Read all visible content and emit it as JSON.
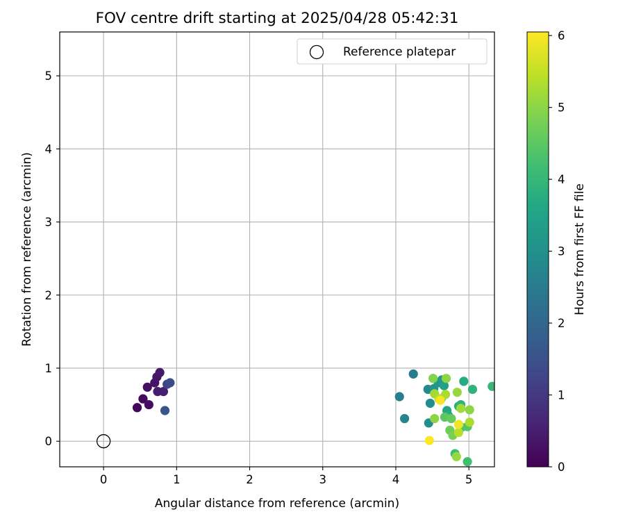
{
  "chart_data": {
    "type": "scatter",
    "title": "FOV centre drift starting at 2025/04/28 05:42:31",
    "xlabel": "Angular distance from reference (arcmin)",
    "ylabel": "Rotation from reference (arcmin)",
    "xlim": [
      -0.6,
      5.35
    ],
    "ylim": [
      -0.35,
      5.6
    ],
    "xticks": [
      0,
      1,
      2,
      3,
      4,
      5
    ],
    "yticks": [
      0,
      1,
      2,
      3,
      4,
      5
    ],
    "grid": true,
    "legend": {
      "position": "top-right",
      "entries": [
        "Reference platepar"
      ]
    },
    "reference_point": {
      "label": "Reference platepar",
      "x": 0,
      "y": 0,
      "marker": "open-circle"
    },
    "colorbar": {
      "label": "Hours from first FF file",
      "colormap": "viridis",
      "range": [
        0,
        6.05
      ],
      "ticks": [
        0,
        1,
        2,
        3,
        4,
        5,
        6
      ]
    },
    "points": [
      {
        "x": 0.46,
        "y": 0.46,
        "c": 0.1
      },
      {
        "x": 0.54,
        "y": 0.58,
        "c": 0.15
      },
      {
        "x": 0.62,
        "y": 0.5,
        "c": 0.2
      },
      {
        "x": 0.6,
        "y": 0.74,
        "c": 0.25
      },
      {
        "x": 0.7,
        "y": 0.8,
        "c": 0.3
      },
      {
        "x": 0.73,
        "y": 0.88,
        "c": 0.35
      },
      {
        "x": 0.77,
        "y": 0.94,
        "c": 0.4
      },
      {
        "x": 0.74,
        "y": 0.68,
        "c": 0.45
      },
      {
        "x": 0.82,
        "y": 0.68,
        "c": 0.5
      },
      {
        "x": 0.87,
        "y": 0.78,
        "c": 1.2
      },
      {
        "x": 0.91,
        "y": 0.8,
        "c": 1.4
      },
      {
        "x": 0.84,
        "y": 0.42,
        "c": 1.6
      },
      {
        "x": 4.24,
        "y": 0.92,
        "c": 2.5
      },
      {
        "x": 4.05,
        "y": 0.61,
        "c": 2.6
      },
      {
        "x": 4.12,
        "y": 0.31,
        "c": 2.7
      },
      {
        "x": 4.44,
        "y": 0.71,
        "c": 2.8
      },
      {
        "x": 4.47,
        "y": 0.52,
        "c": 2.9
      },
      {
        "x": 4.45,
        "y": 0.25,
        "c": 3.0
      },
      {
        "x": 4.52,
        "y": 0.72,
        "c": 3.1
      },
      {
        "x": 4.58,
        "y": 0.8,
        "c": 3.2
      },
      {
        "x": 4.63,
        "y": 0.84,
        "c": 3.3
      },
      {
        "x": 4.66,
        "y": 0.76,
        "c": 3.4
      },
      {
        "x": 4.62,
        "y": 0.58,
        "c": 3.5
      },
      {
        "x": 4.7,
        "y": 0.42,
        "c": 3.6
      },
      {
        "x": 4.72,
        "y": 0.35,
        "c": 3.7
      },
      {
        "x": 4.86,
        "y": 0.48,
        "c": 3.8
      },
      {
        "x": 4.89,
        "y": 0.5,
        "c": 3.9
      },
      {
        "x": 4.93,
        "y": 0.82,
        "c": 3.7
      },
      {
        "x": 5.05,
        "y": 0.71,
        "c": 3.9
      },
      {
        "x": 5.32,
        "y": 0.75,
        "c": 4.0
      },
      {
        "x": 4.81,
        "y": -0.17,
        "c": 4.1
      },
      {
        "x": 4.98,
        "y": -0.28,
        "c": 4.2
      },
      {
        "x": 4.9,
        "y": 0.19,
        "c": 4.3
      },
      {
        "x": 4.98,
        "y": 0.2,
        "c": 4.4
      },
      {
        "x": 4.67,
        "y": 0.33,
        "c": 4.5
      },
      {
        "x": 4.76,
        "y": 0.31,
        "c": 4.6
      },
      {
        "x": 4.74,
        "y": 0.15,
        "c": 4.7
      },
      {
        "x": 4.78,
        "y": 0.08,
        "c": 4.8
      },
      {
        "x": 4.51,
        "y": 0.86,
        "c": 4.9
      },
      {
        "x": 4.69,
        "y": 0.86,
        "c": 5.0
      },
      {
        "x": 4.84,
        "y": 0.67,
        "c": 5.1
      },
      {
        "x": 4.53,
        "y": 0.65,
        "c": 5.2
      },
      {
        "x": 4.68,
        "y": 0.64,
        "c": 5.3
      },
      {
        "x": 4.59,
        "y": 0.58,
        "c": 5.4
      },
      {
        "x": 4.53,
        "y": 0.31,
        "c": 5.0
      },
      {
        "x": 4.83,
        "y": -0.21,
        "c": 5.1
      },
      {
        "x": 4.89,
        "y": 0.45,
        "c": 5.2
      },
      {
        "x": 5.01,
        "y": 0.43,
        "c": 5.0
      },
      {
        "x": 5.01,
        "y": 0.26,
        "c": 5.3
      },
      {
        "x": 4.86,
        "y": 0.12,
        "c": 5.4
      },
      {
        "x": 4.61,
        "y": 0.56,
        "c": 6.0
      },
      {
        "x": 4.86,
        "y": 0.23,
        "c": 5.9
      },
      {
        "x": 4.46,
        "y": 0.01,
        "c": 6.05
      }
    ]
  }
}
